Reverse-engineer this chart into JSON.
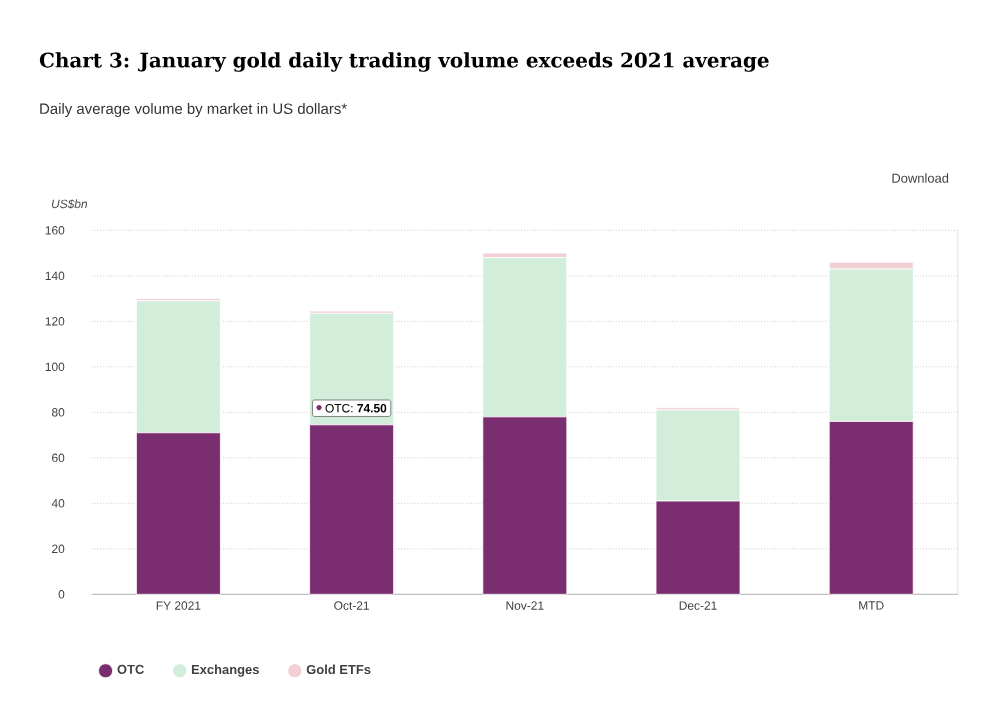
{
  "chart_data": {
    "type": "bar",
    "stacked": true,
    "title": "Chart 3: January gold daily trading volume exceeds 2021 average",
    "subtitle": "Daily average volume by market in US dollars*",
    "ylabel": "US$bn",
    "categories": [
      "FY 2021",
      "Oct-21",
      "Nov-21",
      "Dec-21",
      "MTD"
    ],
    "series": [
      {
        "name": "OTC",
        "color": "#7b2e6f",
        "values": [
          71,
          74.5,
          78,
          41,
          76
        ]
      },
      {
        "name": "Exchanges",
        "color": "#d3eddb",
        "values": [
          58,
          49,
          70,
          40,
          67
        ]
      },
      {
        "name": "Gold ETFs",
        "color": "#f2cfd5",
        "values": [
          1,
          1,
          2,
          1,
          3
        ]
      }
    ],
    "ylim": [
      0,
      160
    ],
    "yticks": [
      0,
      20,
      40,
      60,
      80,
      100,
      120,
      140,
      160
    ],
    "grid": "y",
    "legend": "bottom left",
    "annotations": [
      {
        "text": "OTC: **74.50**",
        "x": "Oct-21",
        "y": 74.5
      },
      "Download"
    ]
  }
}
